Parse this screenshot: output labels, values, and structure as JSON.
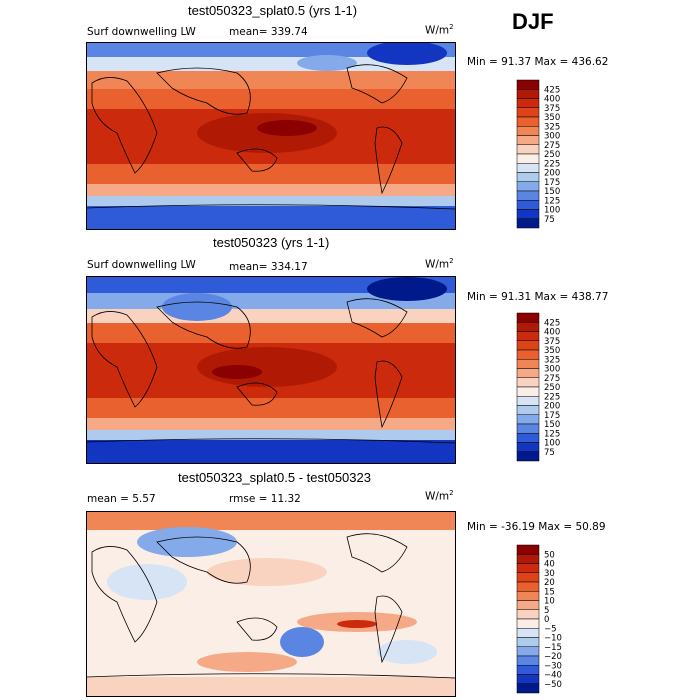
{
  "season": "DJF",
  "panels": [
    {
      "title": "test050323_splat0.5 (yrs 1-1)",
      "variable": "Surf downwelling LW",
      "mean_text": "mean= 339.74",
      "units_base": "W/m",
      "units_exp": "2",
      "minmax_text": "Min =  91.37 Max = 436.62",
      "colorbar_labels": [
        "425",
        "400",
        "375",
        "350",
        "325",
        "300",
        "275",
        "250",
        "225",
        "200",
        "175",
        "150",
        "125",
        "100",
        "75"
      ],
      "colorbar_colors": [
        "#8b0000",
        "#b01a05",
        "#cc2a0c",
        "#dd4418",
        "#e8612e",
        "#f08555",
        "#f5a987",
        "#fad3c0",
        "#fbeee6",
        "#d6e4f6",
        "#aecbee",
        "#85aaea",
        "#5a85e3",
        "#2f5bd8",
        "#1236c2",
        "#001a8c"
      ]
    },
    {
      "title": "test050323 (yrs 1-1)",
      "variable": "Surf downwelling LW",
      "mean_text": "mean= 334.17",
      "units_base": "W/m",
      "units_exp": "2",
      "minmax_text": "Min =  91.31 Max = 438.77",
      "colorbar_labels": [
        "425",
        "400",
        "375",
        "350",
        "325",
        "300",
        "275",
        "250",
        "225",
        "200",
        "175",
        "150",
        "125",
        "100",
        "75"
      ],
      "colorbar_colors": [
        "#8b0000",
        "#b01a05",
        "#cc2a0c",
        "#dd4418",
        "#e8612e",
        "#f08555",
        "#f5a987",
        "#fad3c0",
        "#fbeee6",
        "#d6e4f6",
        "#aecbee",
        "#85aaea",
        "#5a85e3",
        "#2f5bd8",
        "#1236c2",
        "#001a8c"
      ]
    },
    {
      "title": "test050323_splat0.5 - test050323",
      "mean_text": "mean =    5.57",
      "rmse_text": "rmse =   11.32",
      "units_base": "W/m",
      "units_exp": "2",
      "minmax_text": "Min = -36.19 Max =  50.89",
      "colorbar_labels": [
        "50",
        "40",
        "30",
        "20",
        "15",
        "10",
        "5",
        "0",
        "−5",
        "−10",
        "−15",
        "−20",
        "−30",
        "−40",
        "−50"
      ],
      "colorbar_colors": [
        "#8b0000",
        "#b01a05",
        "#cc2a0c",
        "#dd4418",
        "#e8612e",
        "#f08555",
        "#f5a987",
        "#fad3c0",
        "#fbeee6",
        "#d6e4f6",
        "#aecbee",
        "#85aaea",
        "#5a85e3",
        "#2f5bd8",
        "#1236c2",
        "#001a8c"
      ]
    }
  ]
}
